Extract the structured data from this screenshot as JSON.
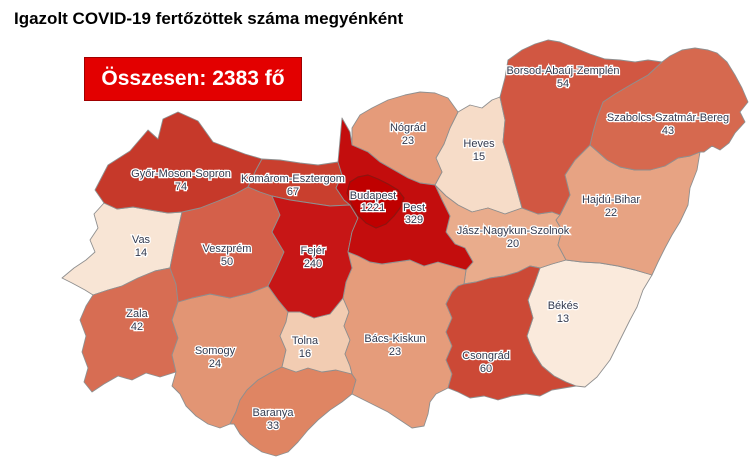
{
  "title": "Igazolt COVID-19 fertőzöttek száma megyénként",
  "total_badge": {
    "label": "Összesen: 2383 fő",
    "background": "#e30000",
    "text_color": "#ffffff"
  },
  "map": {
    "stroke_color": "#8f8f8f",
    "budapest_outline": "#8e1410",
    "label_color": "#333a4f",
    "counties": [
      {
        "id": "vas",
        "name": "Vas",
        "value": 14,
        "color": "#f8e5d5"
      },
      {
        "id": "zala",
        "name": "Zala",
        "value": 42,
        "color": "#d76d53"
      },
      {
        "id": "somogy",
        "name": "Somogy",
        "value": 24,
        "color": "#e29574"
      },
      {
        "id": "baranya",
        "name": "Baranya",
        "value": 33,
        "color": "#df8563"
      },
      {
        "id": "tolna",
        "name": "Tolna",
        "value": 16,
        "color": "#f2ccb2"
      },
      {
        "id": "bekes",
        "name": "Békés",
        "value": 13,
        "color": "#faeadc"
      },
      {
        "id": "heves",
        "name": "Heves",
        "value": 15,
        "color": "#f6dcc8"
      },
      {
        "id": "jasz",
        "name": "Jász-Nagykun-Szolnok",
        "value": 20,
        "color": "#e9ac8c"
      },
      {
        "id": "hajdu",
        "name": "Hajdú-Bihar",
        "value": 22,
        "color": "#e7a383"
      },
      {
        "id": "nograd",
        "name": "Nógrád",
        "value": 23,
        "color": "#e59b7a"
      },
      {
        "id": "bacs",
        "name": "Bács-Kiskun",
        "value": 23,
        "color": "#e59c7b"
      },
      {
        "id": "szabolcs",
        "name": "Szabolcs-Szatmár-Bereg",
        "value": 43,
        "color": "#d6694f"
      },
      {
        "id": "borsod",
        "name": "Borsod-Abaúj-Zemplén",
        "value": 54,
        "color": "#d15742"
      },
      {
        "id": "veszprem",
        "name": "Veszprém",
        "value": 50,
        "color": "#d4604a"
      },
      {
        "id": "csongrad",
        "name": "Csongrád",
        "value": 60,
        "color": "#cc4936"
      },
      {
        "id": "gyms",
        "name": "Győr-Moson-Sopron",
        "value": 74,
        "color": "#c6392a"
      },
      {
        "id": "ke",
        "name": "Komárom-Esztergom",
        "value": 67,
        "color": "#c93f2e"
      },
      {
        "id": "fejer",
        "name": "Fejér",
        "value": 240,
        "color": "#c71616"
      },
      {
        "id": "pest",
        "name": "Pest",
        "value": 329,
        "color": "#c30d0d"
      },
      {
        "id": "budapest",
        "name": "Budapest",
        "value": 1221,
        "color": "#bf0000"
      }
    ]
  },
  "chart_data": {
    "type": "choropleth",
    "title": "Igazolt COVID-19 fertőzöttek száma megyénként",
    "total": 2383,
    "unit": "fő",
    "regions": [
      "Budapest",
      "Pest",
      "Fejér",
      "Győr-Moson-Sopron",
      "Komárom-Esztergom",
      "Csongrád",
      "Borsod-Abaúj-Zemplén",
      "Veszprém",
      "Szabolcs-Szatmár-Bereg",
      "Zala",
      "Baranya",
      "Somogy",
      "Nógrád",
      "Bács-Kiskun",
      "Hajdú-Bihar",
      "Jász-Nagykun-Szolnok",
      "Tolna",
      "Heves",
      "Vas",
      "Békés"
    ],
    "values": [
      1221,
      329,
      240,
      74,
      67,
      60,
      54,
      50,
      43,
      42,
      33,
      24,
      23,
      23,
      22,
      20,
      16,
      15,
      14,
      13
    ]
  }
}
